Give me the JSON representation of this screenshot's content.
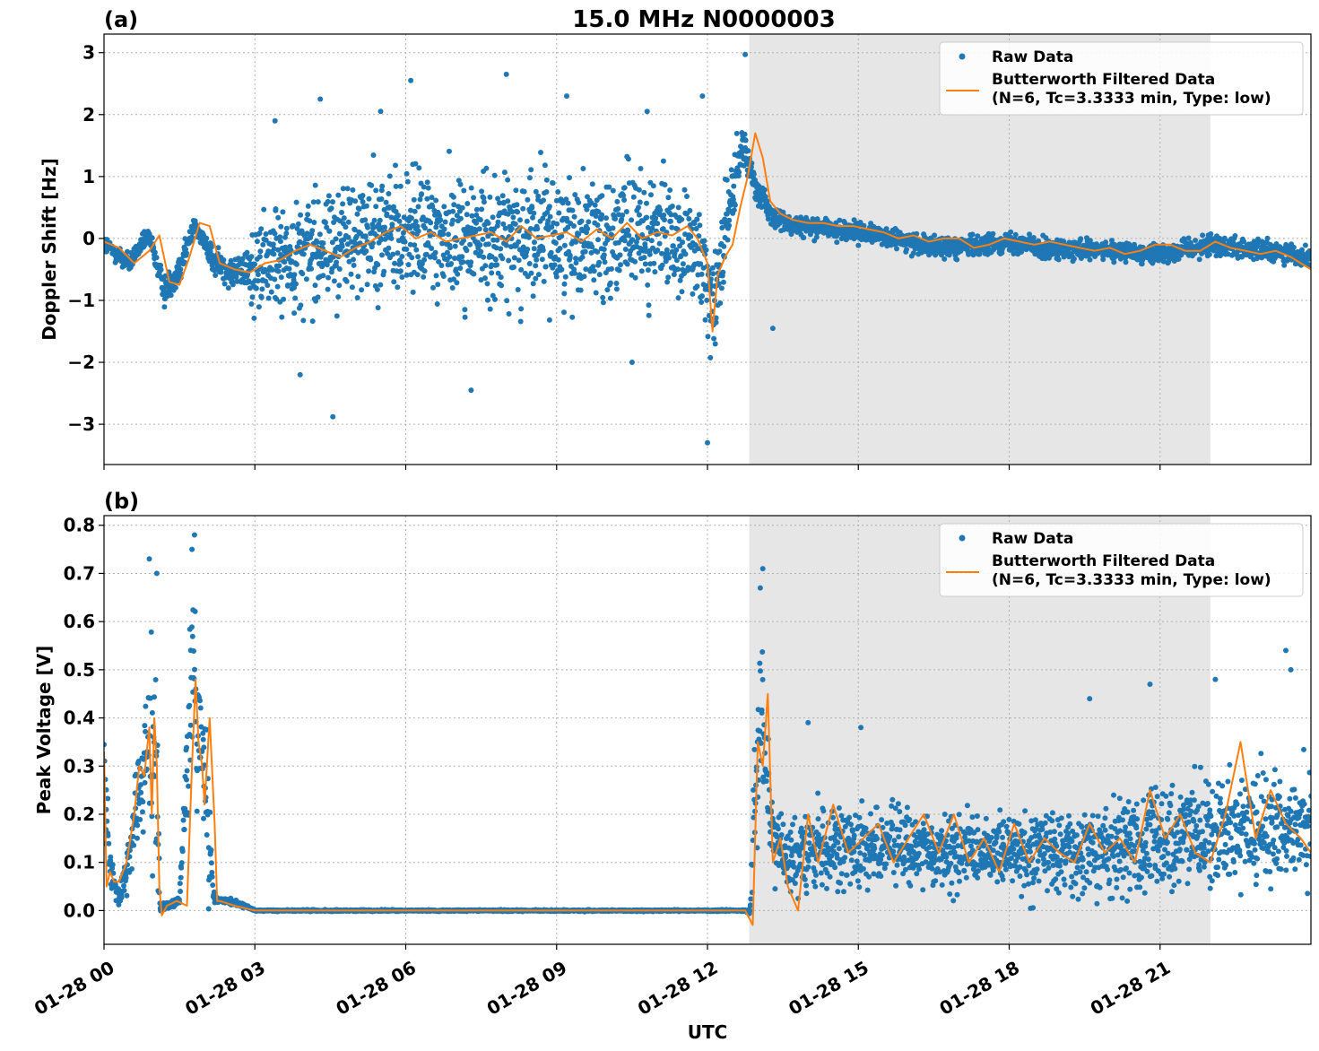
{
  "figure_title": "15.0 MHz N0000003",
  "xlabel": "UTC",
  "colors": {
    "raw": "#1f77b4",
    "filtered": "#ff7f0e",
    "shade": "#e6e6e6",
    "grid": "#b0b0b0"
  },
  "chart_data": [
    {
      "panel": "(a)",
      "type": "scatter",
      "ylabel": "Doppler Shift [Hz]",
      "xlim_hours": [
        0,
        24
      ],
      "ylim": [
        -3.65,
        3.3
      ],
      "yticks": [
        3,
        2,
        1,
        0,
        -1,
        -2,
        -3
      ],
      "ytick_labels": [
        "3",
        "2",
        "1",
        "0",
        "−1",
        "−2",
        "−3"
      ],
      "shaded_region_hours": [
        12.83,
        22.0
      ],
      "legend": {
        "position": "upper-right",
        "entries": [
          "Raw Data",
          "Butterworth Filtered Data",
          "(N=6, Tc=3.3333 min, Type: low)"
        ]
      },
      "series": [
        {
          "name": "Raw Data",
          "style": "points",
          "x_hours": [
            0,
            0.5,
            0.9,
            1.2,
            1.5,
            1.8,
            2.2,
            2.7,
            3.0,
            3.5,
            4.5,
            5.5,
            6.5,
            7.5,
            8.5,
            9.5,
            10.5,
            11.2,
            11.8,
            12.1,
            12.4,
            12.7,
            12.9,
            13.3,
            14.0,
            15.0,
            16.0,
            17.0,
            18.0,
            19.0,
            20.0,
            21.0,
            22.0,
            23.0,
            24.0
          ],
          "center": [
            -0.1,
            -0.4,
            0.05,
            -0.85,
            -0.5,
            0.25,
            -0.4,
            -0.55,
            -0.5,
            -0.3,
            -0.1,
            0.1,
            0.05,
            0.0,
            0.05,
            0.05,
            0.05,
            0.05,
            -0.3,
            -1.0,
            0.3,
            1.5,
            1.0,
            0.3,
            0.2,
            0.1,
            -0.05,
            -0.15,
            -0.05,
            -0.2,
            -0.2,
            -0.25,
            -0.1,
            -0.2,
            -0.3
          ],
          "spread": [
            0.2,
            0.2,
            0.2,
            0.3,
            0.3,
            0.15,
            0.25,
            0.35,
            0.9,
            1.1,
            1.15,
            1.2,
            1.25,
            1.25,
            1.25,
            1.2,
            1.15,
            1.1,
            1.0,
            1.2,
            0.9,
            0.45,
            0.35,
            0.2,
            0.2,
            0.2,
            0.2,
            0.2,
            0.2,
            0.2,
            0.2,
            0.2,
            0.2,
            0.2,
            0.22
          ],
          "outliers": [
            [
              4.55,
              -2.88
            ],
            [
              12.0,
              -3.3
            ],
            [
              3.9,
              -2.2
            ],
            [
              4.3,
              2.25
            ],
            [
              6.1,
              2.55
            ],
            [
              8.0,
              2.65
            ],
            [
              11.9,
              2.3
            ],
            [
              12.75,
              2.97
            ],
            [
              5.5,
              2.05
            ],
            [
              9.2,
              2.3
            ],
            [
              3.4,
              1.9
            ],
            [
              10.8,
              2.05
            ],
            [
              13.3,
              -1.45
            ],
            [
              7.3,
              -2.45
            ],
            [
              10.5,
              -2.0
            ]
          ]
        },
        {
          "name": "Butterworth Filtered Data",
          "style": "line",
          "x_hours": [
            0,
            0.3,
            0.6,
            0.9,
            1.1,
            1.3,
            1.5,
            1.7,
            1.9,
            2.1,
            2.3,
            2.6,
            2.9,
            3.2,
            3.5,
            3.8,
            4.1,
            4.4,
            4.7,
            5.0,
            5.3,
            5.6,
            5.9,
            6.2,
            6.5,
            6.8,
            7.1,
            7.4,
            7.7,
            8.0,
            8.3,
            8.6,
            8.9,
            9.2,
            9.5,
            9.8,
            10.1,
            10.4,
            10.7,
            11.0,
            11.3,
            11.6,
            11.8,
            12.0,
            12.1,
            12.2,
            12.35,
            12.5,
            12.65,
            12.8,
            12.95,
            13.1,
            13.25,
            13.45,
            13.7,
            14.0,
            14.3,
            14.6,
            14.9,
            15.2,
            15.5,
            15.8,
            16.1,
            16.4,
            16.7,
            17.0,
            17.3,
            17.6,
            17.9,
            18.2,
            18.5,
            18.8,
            19.1,
            19.4,
            19.7,
            20.0,
            20.3,
            20.6,
            20.9,
            21.2,
            21.5,
            21.8,
            22.1,
            22.4,
            22.7,
            23.0,
            23.3,
            23.6,
            23.9,
            24.0
          ],
          "values": [
            -0.05,
            -0.15,
            -0.4,
            -0.2,
            0.05,
            -0.7,
            -0.75,
            -0.3,
            0.25,
            0.2,
            -0.4,
            -0.5,
            -0.55,
            -0.4,
            -0.35,
            -0.2,
            -0.1,
            -0.2,
            -0.3,
            -0.15,
            -0.05,
            0.1,
            0.2,
            0.0,
            0.1,
            -0.05,
            0.0,
            0.05,
            0.1,
            -0.05,
            0.2,
            0.0,
            0.05,
            0.1,
            -0.05,
            0.15,
            0.0,
            0.25,
            0.0,
            0.1,
            0.05,
            0.2,
            0.0,
            -0.4,
            -1.5,
            -0.6,
            -0.3,
            -0.1,
            0.5,
            1.0,
            1.7,
            1.3,
            0.6,
            0.4,
            0.3,
            0.25,
            0.25,
            0.2,
            0.2,
            0.15,
            0.1,
            0.0,
            0.05,
            -0.05,
            0.0,
            0.0,
            -0.15,
            -0.1,
            0.0,
            -0.05,
            -0.1,
            -0.05,
            -0.1,
            -0.15,
            -0.2,
            -0.15,
            -0.25,
            -0.2,
            -0.1,
            -0.1,
            -0.2,
            -0.2,
            -0.05,
            -0.15,
            -0.2,
            -0.25,
            -0.2,
            -0.3,
            -0.45,
            -0.5
          ]
        }
      ]
    },
    {
      "panel": "(b)",
      "type": "scatter",
      "ylabel": "Peak Voltage [V]",
      "xlim_hours": [
        0,
        24
      ],
      "ylim": [
        -0.07,
        0.82
      ],
      "yticks": [
        0.8,
        0.7,
        0.6,
        0.5,
        0.4,
        0.3,
        0.2,
        0.1,
        0.0
      ],
      "ytick_labels": [
        "0.8",
        "0.7",
        "0.6",
        "0.5",
        "0.4",
        "0.3",
        "0.2",
        "0.1",
        "0.0"
      ],
      "xticks_hours": [
        0,
        3,
        6,
        9,
        12,
        15,
        18,
        21
      ],
      "xtick_labels": [
        "01-28 00",
        "01-28 03",
        "01-28 06",
        "01-28 09",
        "01-28 12",
        "01-28 15",
        "01-28 18",
        "01-28 21"
      ],
      "shaded_region_hours": [
        12.83,
        22.0
      ],
      "legend": {
        "position": "upper-right",
        "entries": [
          "Raw Data",
          "Butterworth Filtered Data",
          "(N=6, Tc=3.3333 min, Type: low)"
        ]
      },
      "series": [
        {
          "name": "Raw Data",
          "style": "points",
          "x_hours": [
            0,
            0.1,
            0.3,
            0.5,
            0.7,
            0.85,
            0.95,
            1.05,
            1.12,
            1.2,
            1.5,
            1.75,
            1.85,
            1.95,
            2.05,
            2.2,
            2.5,
            2.8,
            3.0,
            12.75,
            12.85,
            12.95,
            13.05,
            13.15,
            13.3,
            13.6,
            14.0,
            15.0,
            16.0,
            17.0,
            18.0,
            19.0,
            20.0,
            21.0,
            22.0,
            23.0,
            24.0
          ],
          "center": [
            0.3,
            0.1,
            0.03,
            0.1,
            0.25,
            0.3,
            0.35,
            0.25,
            0.0,
            0.01,
            0.02,
            0.5,
            0.4,
            0.35,
            0.2,
            0.02,
            0.02,
            0.01,
            0.0,
            0.0,
            0.0,
            0.25,
            0.45,
            0.3,
            0.15,
            0.1,
            0.13,
            0.13,
            0.13,
            0.12,
            0.12,
            0.12,
            0.13,
            0.14,
            0.16,
            0.16,
            0.17
          ],
          "spread": [
            0.22,
            0.05,
            0.02,
            0.08,
            0.12,
            0.2,
            0.3,
            0.25,
            0.01,
            0.01,
            0.01,
            0.25,
            0.3,
            0.15,
            0.2,
            0.01,
            0.01,
            0.005,
            0.002,
            0.002,
            0.01,
            0.2,
            0.25,
            0.2,
            0.1,
            0.08,
            0.1,
            0.1,
            0.1,
            0.1,
            0.1,
            0.11,
            0.11,
            0.12,
            0.14,
            0.15,
            0.15
          ],
          "outliers": [
            [
              0.9,
              0.73
            ],
            [
              1.05,
              0.7
            ],
            [
              1.8,
              0.78
            ],
            [
              1.75,
              0.75
            ],
            [
              13.1,
              0.71
            ],
            [
              13.05,
              0.67
            ],
            [
              23.5,
              0.54
            ],
            [
              23.6,
              0.5
            ],
            [
              15.05,
              0.38
            ],
            [
              19.6,
              0.44
            ],
            [
              20.8,
              0.47
            ],
            [
              22.1,
              0.48
            ],
            [
              14.0,
              0.39
            ]
          ]
        },
        {
          "name": "Butterworth Filtered Data",
          "style": "line",
          "x_hours": [
            0,
            0.05,
            0.12,
            0.2,
            0.3,
            0.45,
            0.6,
            0.7,
            0.8,
            0.9,
            0.95,
            1.0,
            1.05,
            1.1,
            1.15,
            1.25,
            1.45,
            1.65,
            1.75,
            1.82,
            1.88,
            1.95,
            2.0,
            2.1,
            2.2,
            2.25,
            2.3,
            2.6,
            3.0,
            4.0,
            6.0,
            8.0,
            10.0,
            12.0,
            12.5,
            12.75,
            12.85,
            12.9,
            13.0,
            13.1,
            13.2,
            13.3,
            13.45,
            13.6,
            13.8,
            14.0,
            14.2,
            14.5,
            14.8,
            15.1,
            15.4,
            15.7,
            16.0,
            16.3,
            16.6,
            16.9,
            17.2,
            17.5,
            17.8,
            18.1,
            18.4,
            18.7,
            19.0,
            19.3,
            19.6,
            19.9,
            20.2,
            20.5,
            20.8,
            21.1,
            21.4,
            21.7,
            22.0,
            22.3,
            22.6,
            22.9,
            23.2,
            23.5,
            23.8,
            24.0
          ],
          "values": [
            0.33,
            0.05,
            0.08,
            0.06,
            0.06,
            0.1,
            0.2,
            0.3,
            0.28,
            0.38,
            0.2,
            0.4,
            0.3,
            0.05,
            -0.01,
            0.01,
            0.02,
            0.01,
            0.3,
            0.48,
            0.35,
            0.3,
            0.22,
            0.4,
            0.18,
            0.02,
            0.02,
            0.01,
            0.0,
            0.0,
            0.0,
            0.0,
            0.0,
            0.0,
            0.0,
            0.0,
            -0.02,
            -0.03,
            0.35,
            0.3,
            0.45,
            0.1,
            0.15,
            0.05,
            0.0,
            0.2,
            0.1,
            0.22,
            0.12,
            0.15,
            0.18,
            0.1,
            0.15,
            0.2,
            0.12,
            0.2,
            0.1,
            0.15,
            0.08,
            0.18,
            0.1,
            0.15,
            0.12,
            0.1,
            0.18,
            0.12,
            0.15,
            0.1,
            0.25,
            0.15,
            0.2,
            0.12,
            0.1,
            0.2,
            0.35,
            0.15,
            0.25,
            0.18,
            0.15,
            0.12
          ]
        }
      ]
    }
  ]
}
